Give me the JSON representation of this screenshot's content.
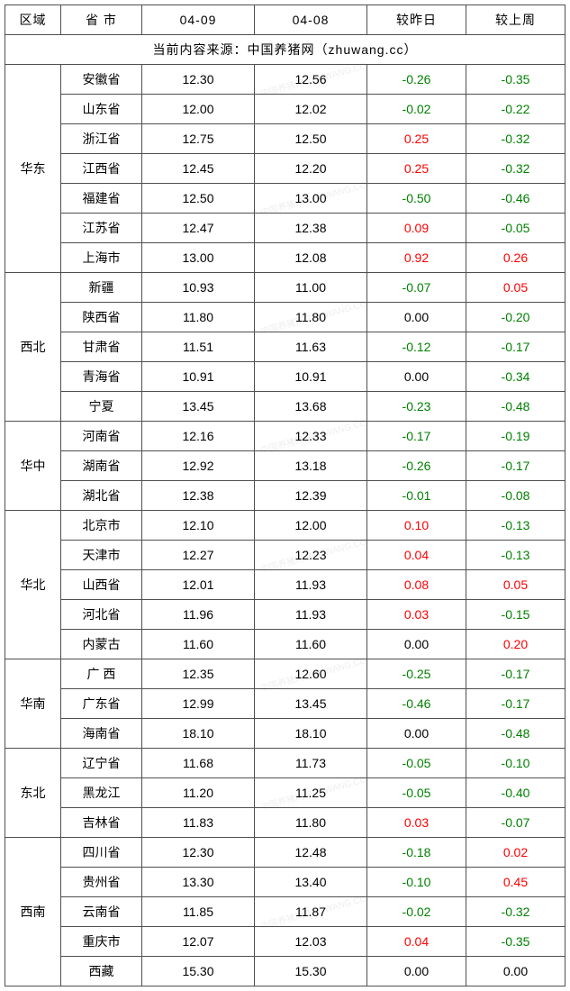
{
  "columns": [
    "区域",
    "省 市",
    "04-09",
    "04-08",
    "较昨日",
    "较上周"
  ],
  "source_line": "当前内容来源：中国养猪网（zhuwang.cc）",
  "watermark_text": "中国养猪网 ZHUWANG.CC",
  "colors": {
    "border": "#4f4f4f",
    "neg": "#008000",
    "pos": "#ff0000",
    "zero": "#000000",
    "bg": "#ffffff"
  },
  "regions": [
    {
      "name": "华东",
      "rows": [
        {
          "prov": "安徽省",
          "d1": "12.30",
          "d2": "12.56",
          "dy": "-0.26",
          "dw": "-0.35"
        },
        {
          "prov": "山东省",
          "d1": "12.00",
          "d2": "12.02",
          "dy": "-0.02",
          "dw": "-0.22"
        },
        {
          "prov": "浙江省",
          "d1": "12.75",
          "d2": "12.50",
          "dy": "0.25",
          "dw": "-0.32"
        },
        {
          "prov": "江西省",
          "d1": "12.45",
          "d2": "12.20",
          "dy": "0.25",
          "dw": "-0.32"
        },
        {
          "prov": "福建省",
          "d1": "12.50",
          "d2": "13.00",
          "dy": "-0.50",
          "dw": "-0.46"
        },
        {
          "prov": "江苏省",
          "d1": "12.47",
          "d2": "12.38",
          "dy": "0.09",
          "dw": "-0.05"
        },
        {
          "prov": "上海市",
          "d1": "13.00",
          "d2": "12.08",
          "dy": "0.92",
          "dw": "0.26"
        }
      ]
    },
    {
      "name": "西北",
      "rows": [
        {
          "prov": "新疆",
          "d1": "10.93",
          "d2": "11.00",
          "dy": "-0.07",
          "dw": "0.05"
        },
        {
          "prov": "陕西省",
          "d1": "11.80",
          "d2": "11.80",
          "dy": "0.00",
          "dw": "-0.20"
        },
        {
          "prov": "甘肃省",
          "d1": "11.51",
          "d2": "11.63",
          "dy": "-0.12",
          "dw": "-0.17"
        },
        {
          "prov": "青海省",
          "d1": "10.91",
          "d2": "10.91",
          "dy": "0.00",
          "dw": "-0.34"
        },
        {
          "prov": "宁夏",
          "d1": "13.45",
          "d2": "13.68",
          "dy": "-0.23",
          "dw": "-0.48"
        }
      ]
    },
    {
      "name": "华中",
      "rows": [
        {
          "prov": "河南省",
          "d1": "12.16",
          "d2": "12.33",
          "dy": "-0.17",
          "dw": "-0.19"
        },
        {
          "prov": "湖南省",
          "d1": "12.92",
          "d2": "13.18",
          "dy": "-0.26",
          "dw": "-0.17"
        },
        {
          "prov": "湖北省",
          "d1": "12.38",
          "d2": "12.39",
          "dy": "-0.01",
          "dw": "-0.08"
        }
      ]
    },
    {
      "name": "华北",
      "rows": [
        {
          "prov": "北京市",
          "d1": "12.10",
          "d2": "12.00",
          "dy": "0.10",
          "dw": "-0.13"
        },
        {
          "prov": "天津市",
          "d1": "12.27",
          "d2": "12.23",
          "dy": "0.04",
          "dw": "-0.13"
        },
        {
          "prov": "山西省",
          "d1": "12.01",
          "d2": "11.93",
          "dy": "0.08",
          "dw": "0.05"
        },
        {
          "prov": "河北省",
          "d1": "11.96",
          "d2": "11.93",
          "dy": "0.03",
          "dw": "-0.15"
        },
        {
          "prov": "内蒙古",
          "d1": "11.60",
          "d2": "11.60",
          "dy": "0.00",
          "dw": "0.20"
        }
      ]
    },
    {
      "name": "华南",
      "rows": [
        {
          "prov": "广 西",
          "d1": "12.35",
          "d2": "12.60",
          "dy": "-0.25",
          "dw": "-0.17"
        },
        {
          "prov": "广东省",
          "d1": "12.99",
          "d2": "13.45",
          "dy": "-0.46",
          "dw": "-0.17"
        },
        {
          "prov": "海南省",
          "d1": "18.10",
          "d2": "18.10",
          "dy": "0.00",
          "dw": "-0.48"
        }
      ]
    },
    {
      "name": "东北",
      "rows": [
        {
          "prov": "辽宁省",
          "d1": "11.68",
          "d2": "11.73",
          "dy": "-0.05",
          "dw": "-0.10"
        },
        {
          "prov": "黑龙江",
          "d1": "11.20",
          "d2": "11.25",
          "dy": "-0.05",
          "dw": "-0.40"
        },
        {
          "prov": "吉林省",
          "d1": "11.83",
          "d2": "11.80",
          "dy": "0.03",
          "dw": "-0.07"
        }
      ]
    },
    {
      "name": "西南",
      "rows": [
        {
          "prov": "四川省",
          "d1": "12.30",
          "d2": "12.48",
          "dy": "-0.18",
          "dw": "0.02"
        },
        {
          "prov": "贵州省",
          "d1": "13.30",
          "d2": "13.40",
          "dy": "-0.10",
          "dw": "0.45"
        },
        {
          "prov": "云南省",
          "d1": "11.85",
          "d2": "11.87",
          "dy": "-0.02",
          "dw": "-0.32"
        },
        {
          "prov": "重庆市",
          "d1": "12.07",
          "d2": "12.03",
          "dy": "0.04",
          "dw": "-0.35"
        },
        {
          "prov": "西藏",
          "d1": "15.30",
          "d2": "15.30",
          "dy": "0.00",
          "dw": "0.00"
        }
      ]
    }
  ]
}
